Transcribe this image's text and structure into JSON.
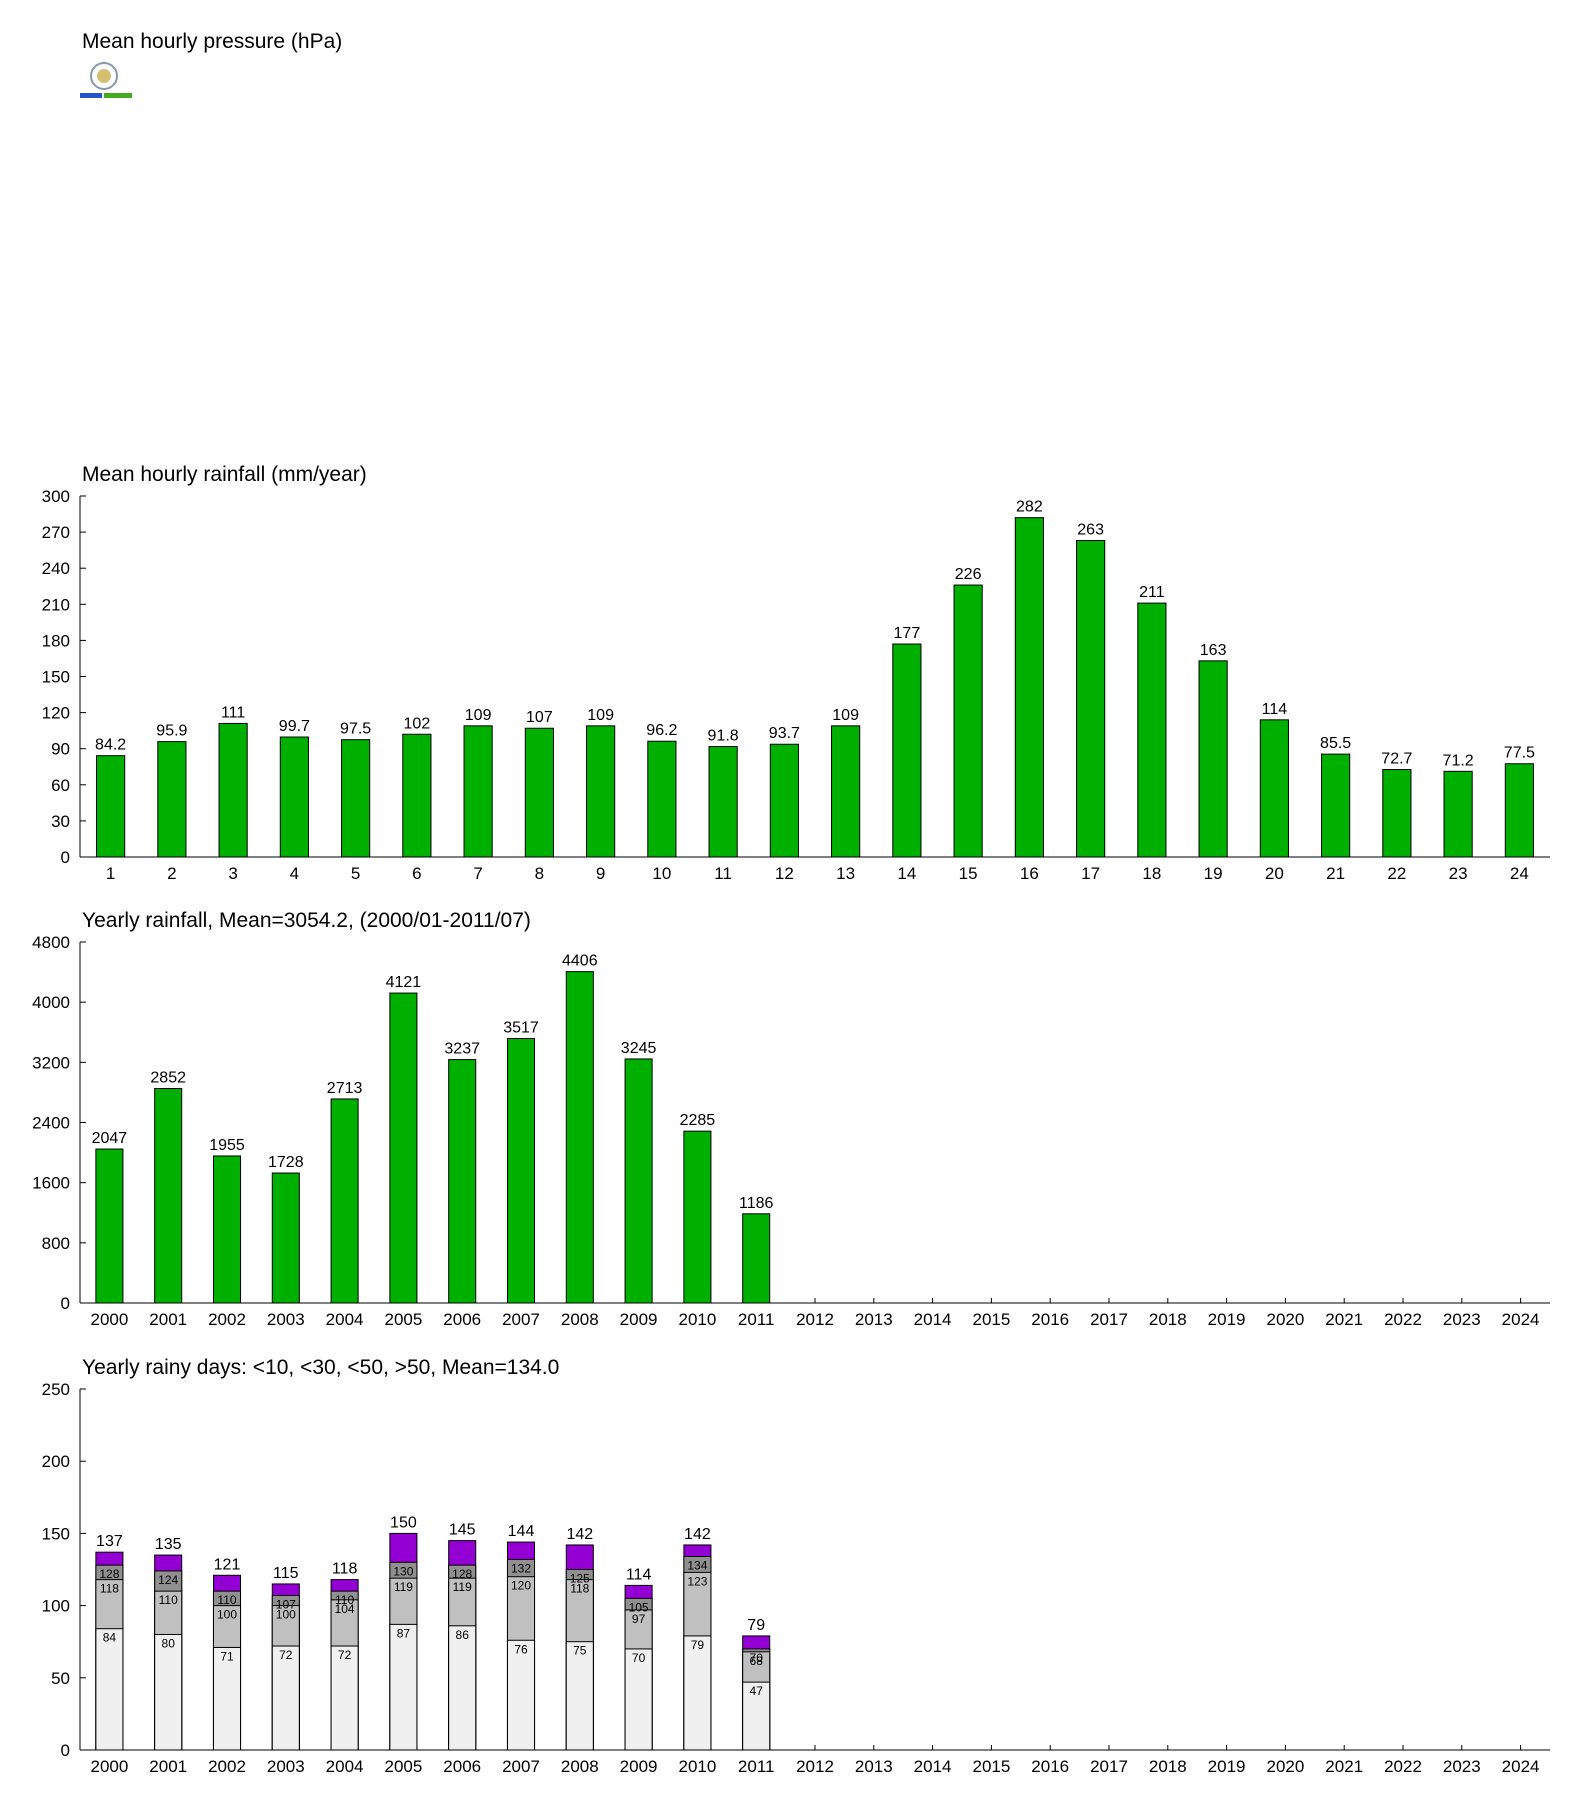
{
  "chart_data": [
    {
      "type": "line",
      "title": "Mean hourly pressure (hPa)"
    },
    {
      "type": "bar",
      "title": "Mean hourly rainfall (mm/year)",
      "categories": [
        "1",
        "2",
        "3",
        "4",
        "5",
        "6",
        "7",
        "8",
        "9",
        "10",
        "11",
        "12",
        "13",
        "14",
        "15",
        "16",
        "17",
        "18",
        "19",
        "20",
        "21",
        "22",
        "23",
        "24"
      ],
      "values": [
        84.2,
        95.9,
        111,
        99.7,
        97.5,
        102,
        109,
        107,
        109,
        96.2,
        91.8,
        93.7,
        109,
        177,
        226,
        282,
        263,
        211,
        163,
        114,
        85.5,
        72.7,
        71.2,
        77.5
      ],
      "color": "#00b000",
      "ylim": [
        0,
        300
      ],
      "yticks": [
        0,
        30,
        60,
        90,
        120,
        150,
        180,
        210,
        240,
        270,
        300
      ]
    },
    {
      "type": "bar",
      "title": "Yearly rainfall, Mean=3054.2, (2000/01-2011/07)",
      "categories": [
        "2000",
        "2001",
        "2002",
        "2003",
        "2004",
        "2005",
        "2006",
        "2007",
        "2008",
        "2009",
        "2010",
        "2011",
        "2012",
        "2013",
        "2014",
        "2015",
        "2016",
        "2017",
        "2018",
        "2019",
        "2020",
        "2021",
        "2022",
        "2023",
        "2024"
      ],
      "values": [
        2047,
        2852,
        1955,
        1728,
        2713,
        4121,
        3237,
        3517,
        4406,
        3245,
        2285,
        1186,
        null,
        null,
        null,
        null,
        null,
        null,
        null,
        null,
        null,
        null,
        null,
        null,
        null
      ],
      "color": "#00b000",
      "ylim": [
        0,
        4800
      ],
      "yticks": [
        0,
        800,
        1600,
        2400,
        3200,
        4000,
        4800
      ]
    },
    {
      "type": "bar",
      "title": "Yearly rainy days: <10, <30, <50, >50, Mean=134.0",
      "categories": [
        "2000",
        "2001",
        "2002",
        "2003",
        "2004",
        "2005",
        "2006",
        "2007",
        "2008",
        "2009",
        "2010",
        "2011",
        "2012",
        "2013",
        "2014",
        "2015",
        "2016",
        "2017",
        "2018",
        "2019",
        "2020",
        "2021",
        "2022",
        "2023",
        "2024"
      ],
      "series": [
        {
          "color": "#f0f0f0",
          "values": [
            84,
            80,
            71,
            72,
            72,
            87,
            86,
            76,
            75,
            70,
            79,
            47,
            null,
            null,
            null,
            null,
            null,
            null,
            null,
            null,
            null,
            null,
            null,
            null,
            null
          ]
        },
        {
          "color": "#c0c0c0",
          "values": [
            118,
            110,
            100,
            100,
            104,
            119,
            119,
            120,
            118,
            97,
            123,
            68,
            null,
            null,
            null,
            null,
            null,
            null,
            null,
            null,
            null,
            null,
            null,
            null,
            null
          ]
        },
        {
          "color": "#909090",
          "values": [
            128,
            124,
            110,
            107,
            110,
            130,
            128,
            132,
            125,
            105,
            134,
            70,
            null,
            null,
            null,
            null,
            null,
            null,
            null,
            null,
            null,
            null,
            null,
            null,
            null
          ]
        },
        {
          "color": "#9400d3",
          "values": [
            137,
            135,
            121,
            115,
            118,
            150,
            145,
            144,
            142,
            114,
            142,
            79,
            null,
            null,
            null,
            null,
            null,
            null,
            null,
            null,
            null,
            null,
            null,
            null,
            null
          ]
        }
      ],
      "ylim": [
        0,
        250
      ],
      "yticks": [
        0,
        50,
        100,
        150,
        200,
        250
      ]
    }
  ]
}
